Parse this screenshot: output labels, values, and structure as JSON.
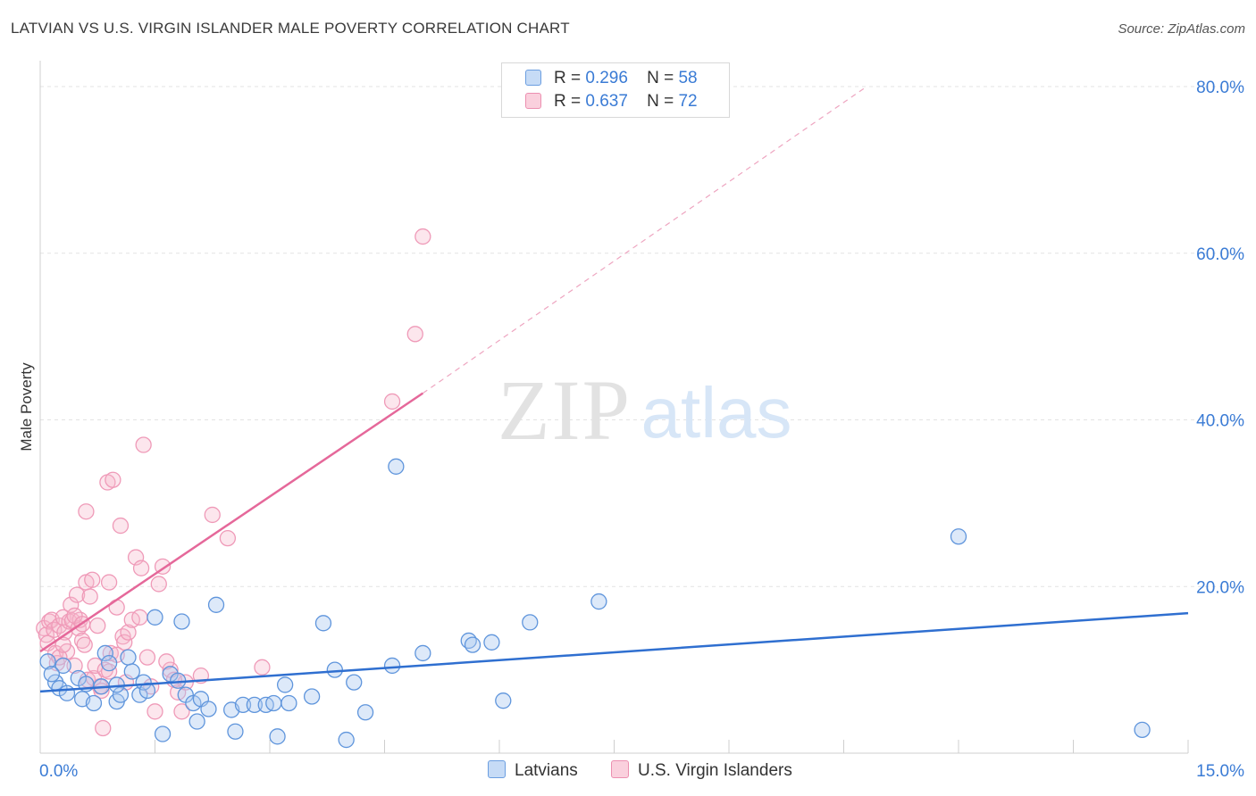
{
  "title": "LATVIAN VS U.S. VIRGIN ISLANDER MALE POVERTY CORRELATION CHART",
  "source": "Source: ZipAtlas.com",
  "watermark": {
    "zip": "ZIP",
    "atlas": "atlas"
  },
  "legend": {
    "rows": [
      {
        "r_label": "R =",
        "r_value": "0.296",
        "n_label": "N =",
        "n_value": "58"
      },
      {
        "r_label": "R =",
        "r_value": "0.637",
        "n_label": "N =",
        "n_value": "72"
      }
    ]
  },
  "bottom_legend": {
    "series1": "Latvians",
    "series2": "U.S. Virgin Islanders"
  },
  "colors": {
    "blue": "#3a7bd5",
    "blue_fill": "#a9c8f0",
    "pink": "#e8709a",
    "pink_fill": "#f5b8cc",
    "tick_text": "#3a7bd5",
    "grid": "#e3e3e3"
  },
  "chart_data": {
    "type": "scatter",
    "xlabel": "",
    "ylabel": "Male Poverty",
    "xlim": [
      0,
      15
    ],
    "ylim": [
      0,
      80
    ],
    "x_tick_labels": [
      {
        "value": 0,
        "label": "0.0%"
      },
      {
        "value": 15,
        "label": "15.0%"
      }
    ],
    "y_tick_labels": [
      {
        "value": 20,
        "label": "20.0%"
      },
      {
        "value": 40,
        "label": "40.0%"
      },
      {
        "value": 60,
        "label": "60.0%"
      },
      {
        "value": 80,
        "label": "80.0%"
      }
    ],
    "series": [
      {
        "name": "Latvians",
        "color": "#3a7bd5",
        "r": 0.296,
        "n": 58,
        "trend": {
          "x": [
            0,
            15
          ],
          "y": [
            7.4,
            16.8
          ]
        },
        "points": [
          [
            0.1,
            11.0
          ],
          [
            0.2,
            8.5
          ],
          [
            0.25,
            7.8
          ],
          [
            0.3,
            10.5
          ],
          [
            0.35,
            7.2
          ],
          [
            0.5,
            9.0
          ],
          [
            0.55,
            6.5
          ],
          [
            0.6,
            8.3
          ],
          [
            0.7,
            6.0
          ],
          [
            0.8,
            8.0
          ],
          [
            0.85,
            12.0
          ],
          [
            0.9,
            10.8
          ],
          [
            1.0,
            6.2
          ],
          [
            1.05,
            7.0
          ],
          [
            1.15,
            11.5
          ],
          [
            1.2,
            9.8
          ],
          [
            1.3,
            7.0
          ],
          [
            1.35,
            8.5
          ],
          [
            1.4,
            7.5
          ],
          [
            1.5,
            16.3
          ],
          [
            1.6,
            2.3
          ],
          [
            1.7,
            9.5
          ],
          [
            1.8,
            8.7
          ],
          [
            1.85,
            15.8
          ],
          [
            1.9,
            7.0
          ],
          [
            2.0,
            6.0
          ],
          [
            2.05,
            3.8
          ],
          [
            2.1,
            6.5
          ],
          [
            2.2,
            5.3
          ],
          [
            2.3,
            17.8
          ],
          [
            2.5,
            5.2
          ],
          [
            2.55,
            2.6
          ],
          [
            2.65,
            5.8
          ],
          [
            2.8,
            5.8
          ],
          [
            2.95,
            5.8
          ],
          [
            3.05,
            6.0
          ],
          [
            3.1,
            2.0
          ],
          [
            3.2,
            8.2
          ],
          [
            3.25,
            6.0
          ],
          [
            3.55,
            6.8
          ],
          [
            3.7,
            15.6
          ],
          [
            3.85,
            10.0
          ],
          [
            4.0,
            1.6
          ],
          [
            4.1,
            8.5
          ],
          [
            4.25,
            4.9
          ],
          [
            4.6,
            10.5
          ],
          [
            4.65,
            34.4
          ],
          [
            5.0,
            12.0
          ],
          [
            5.6,
            13.5
          ],
          [
            5.65,
            13.0
          ],
          [
            5.9,
            13.3
          ],
          [
            6.05,
            6.3
          ],
          [
            6.4,
            15.7
          ],
          [
            7.3,
            18.2
          ],
          [
            12.0,
            26.0
          ],
          [
            14.4,
            2.8
          ],
          [
            0.15,
            9.5
          ],
          [
            1.0,
            8.2
          ]
        ]
      },
      {
        "name": "U.S. Virgin Islanders",
        "color": "#e8709a",
        "r": 0.637,
        "n": 72,
        "trend": {
          "x": [
            0,
            5.0
          ],
          "y": [
            12.2,
            43.2
          ],
          "dashed_to": {
            "x": 10.8,
            "y": 80
          }
        },
        "points": [
          [
            0.05,
            15.0
          ],
          [
            0.08,
            14.2
          ],
          [
            0.1,
            13.2
          ],
          [
            0.12,
            15.8
          ],
          [
            0.15,
            16.0
          ],
          [
            0.18,
            14.8
          ],
          [
            0.2,
            12.0
          ],
          [
            0.22,
            10.8
          ],
          [
            0.25,
            15.3
          ],
          [
            0.3,
            16.3
          ],
          [
            0.32,
            14.5
          ],
          [
            0.35,
            12.2
          ],
          [
            0.38,
            15.8
          ],
          [
            0.4,
            17.8
          ],
          [
            0.42,
            15.9
          ],
          [
            0.45,
            10.5
          ],
          [
            0.48,
            19.0
          ],
          [
            0.5,
            15.0
          ],
          [
            0.52,
            16.0
          ],
          [
            0.55,
            13.5
          ],
          [
            0.58,
            13.0
          ],
          [
            0.6,
            20.5
          ],
          [
            0.62,
            8.8
          ],
          [
            0.65,
            18.8
          ],
          [
            0.68,
            20.8
          ],
          [
            0.7,
            9.0
          ],
          [
            0.72,
            10.5
          ],
          [
            0.75,
            15.3
          ],
          [
            0.78,
            8.0
          ],
          [
            0.8,
            7.5
          ],
          [
            0.82,
            3.0
          ],
          [
            0.85,
            10.0
          ],
          [
            0.88,
            32.5
          ],
          [
            0.9,
            20.5
          ],
          [
            0.92,
            12.0
          ],
          [
            0.95,
            32.8
          ],
          [
            1.0,
            17.5
          ],
          [
            1.05,
            27.3
          ],
          [
            1.08,
            14.0
          ],
          [
            1.1,
            13.3
          ],
          [
            1.12,
            8.5
          ],
          [
            1.15,
            14.5
          ],
          [
            1.2,
            16.0
          ],
          [
            1.25,
            23.5
          ],
          [
            1.3,
            16.3
          ],
          [
            1.32,
            22.2
          ],
          [
            1.35,
            37.0
          ],
          [
            1.4,
            11.5
          ],
          [
            1.45,
            8.0
          ],
          [
            1.5,
            5.0
          ],
          [
            1.55,
            20.3
          ],
          [
            1.6,
            22.4
          ],
          [
            1.7,
            10.0
          ],
          [
            1.8,
            7.3
          ],
          [
            1.85,
            5.0
          ],
          [
            1.9,
            8.5
          ],
          [
            2.1,
            9.3
          ],
          [
            2.25,
            28.6
          ],
          [
            2.45,
            25.8
          ],
          [
            2.9,
            10.3
          ],
          [
            4.6,
            42.2
          ],
          [
            4.9,
            50.3
          ],
          [
            5.0,
            62.0
          ],
          [
            0.6,
            29.0
          ],
          [
            0.25,
            11.5
          ],
          [
            0.3,
            13.0
          ],
          [
            0.45,
            16.5
          ],
          [
            0.55,
            15.5
          ],
          [
            0.9,
            9.8
          ],
          [
            1.0,
            11.8
          ],
          [
            1.65,
            11.0
          ],
          [
            1.75,
            8.8
          ]
        ]
      }
    ]
  }
}
